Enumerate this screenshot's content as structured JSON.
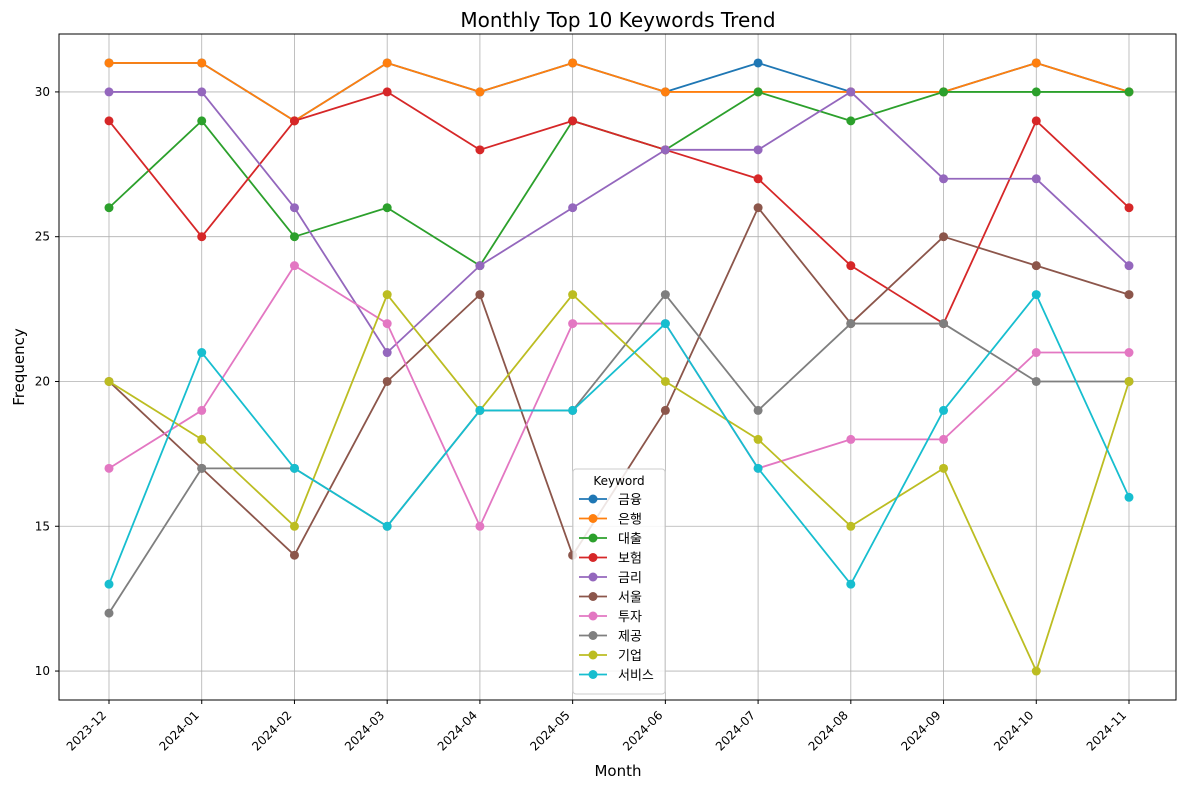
{
  "chart_data": {
    "type": "line",
    "title": "Monthly Top 10 Keywords Trend",
    "xlabel": "Month",
    "ylabel": "Frequency",
    "categories": [
      "2023-12",
      "2024-01",
      "2024-02",
      "2024-03",
      "2024-04",
      "2024-05",
      "2024-06",
      "2024-07",
      "2024-08",
      "2024-09",
      "2024-10",
      "2024-11"
    ],
    "ylim": [
      9,
      32
    ],
    "yticks": [
      10,
      15,
      20,
      25,
      30
    ],
    "grid": true,
    "legend_title": "Keyword",
    "legend_position": "bottom-center",
    "marker": "circle",
    "series": [
      {
        "name": "금융",
        "color": "#1f77b4",
        "values": [
          31,
          31,
          29,
          31,
          30,
          31,
          30,
          31,
          30,
          30,
          31,
          30
        ]
      },
      {
        "name": "은행",
        "color": "#ff7f0e",
        "values": [
          31,
          31,
          29,
          31,
          30,
          31,
          30,
          30,
          30,
          30,
          31,
          30
        ]
      },
      {
        "name": "대출",
        "color": "#2ca02c",
        "values": [
          26,
          29,
          25,
          26,
          24,
          29,
          28,
          30,
          29,
          30,
          30,
          30
        ]
      },
      {
        "name": "보험",
        "color": "#d62728",
        "values": [
          29,
          25,
          29,
          30,
          28,
          29,
          28,
          27,
          24,
          22,
          29,
          26
        ]
      },
      {
        "name": "금리",
        "color": "#9467bd",
        "values": [
          30,
          30,
          26,
          21,
          24,
          26,
          28,
          28,
          30,
          27,
          27,
          24
        ]
      },
      {
        "name": "서울",
        "color": "#8c564b",
        "values": [
          20,
          17,
          14,
          20,
          23,
          14,
          19,
          26,
          22,
          25,
          24,
          23
        ]
      },
      {
        "name": "투자",
        "color": "#e377c2",
        "values": [
          17,
          19,
          24,
          22,
          15,
          22,
          22,
          17,
          18,
          18,
          21,
          21
        ]
      },
      {
        "name": "제공",
        "color": "#7f7f7f",
        "values": [
          12,
          17,
          17,
          15,
          19,
          19,
          23,
          19,
          22,
          22,
          20,
          20
        ]
      },
      {
        "name": "기업",
        "color": "#bcbd22",
        "values": [
          20,
          18,
          15,
          23,
          19,
          23,
          20,
          18,
          15,
          17,
          10,
          20
        ]
      },
      {
        "name": "서비스",
        "color": "#17becf",
        "values": [
          13,
          21,
          17,
          15,
          19,
          19,
          22,
          17,
          13,
          19,
          23,
          16
        ]
      }
    ]
  }
}
